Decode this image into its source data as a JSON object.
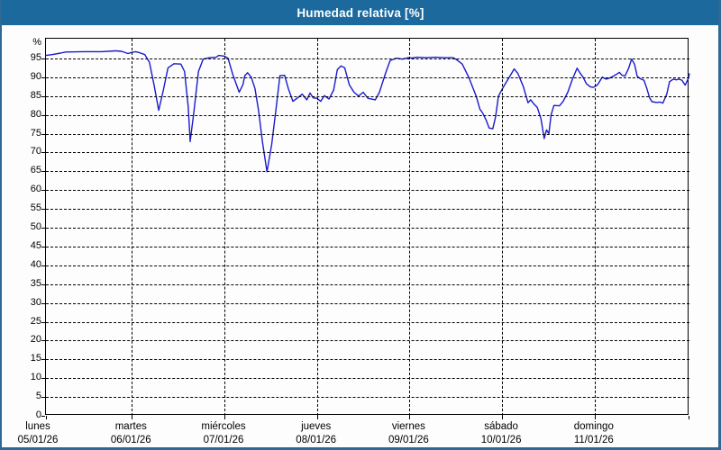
{
  "window": {
    "title": "Humedad relativa [%]",
    "title_bar_color": "#1b699d",
    "frame_color": "#2f6795",
    "background_color": "#fdfdfd"
  },
  "chart_data": {
    "type": "line",
    "title": "Humedad relativa [%]",
    "y_unit_label": "%",
    "ylim": [
      0,
      100.3
    ],
    "ytick_values": [
      0,
      5,
      10,
      15,
      20,
      25,
      30,
      35,
      40,
      45,
      50,
      55,
      60,
      65,
      70,
      75,
      80,
      85,
      90,
      95
    ],
    "grid": "dashed-black",
    "line_color": "#1a1acd",
    "x_days": [
      {
        "name": "lunes",
        "date": "05/01/26"
      },
      {
        "name": "martes",
        "date": "06/01/26"
      },
      {
        "name": "miércoles",
        "date": "07/01/26"
      },
      {
        "name": "jueves",
        "date": "08/01/26"
      },
      {
        "name": "viernes",
        "date": "09/01/26"
      },
      {
        "name": "sábado",
        "date": "10/01/26"
      },
      {
        "name": "domingo",
        "date": "11/01/26"
      }
    ],
    "series": [
      {
        "name": "Humedad relativa",
        "unit": "%",
        "points": [
          [
            0.0,
            95.8
          ],
          [
            0.07,
            96.0
          ],
          [
            0.17,
            96.4
          ],
          [
            0.23,
            96.7
          ],
          [
            0.44,
            96.8
          ],
          [
            0.65,
            96.8
          ],
          [
            0.81,
            97.0
          ],
          [
            0.88,
            96.9
          ],
          [
            0.955,
            96.3
          ],
          [
            1.0,
            96.6
          ],
          [
            1.04,
            96.8
          ],
          [
            1.085,
            96.5
          ],
          [
            1.14,
            96.0
          ],
          [
            1.19,
            94.0
          ],
          [
            1.24,
            88.0
          ],
          [
            1.29,
            81.2
          ],
          [
            1.34,
            86.5
          ],
          [
            1.39,
            92.5
          ],
          [
            1.455,
            93.6
          ],
          [
            1.53,
            93.5
          ],
          [
            1.57,
            91.5
          ],
          [
            1.61,
            82.0
          ],
          [
            1.63,
            72.9
          ],
          [
            1.67,
            80.7
          ],
          [
            1.72,
            91.5
          ],
          [
            1.77,
            94.8
          ],
          [
            1.84,
            95.2
          ],
          [
            1.91,
            95.3
          ],
          [
            1.94,
            95.8
          ],
          [
            2.0,
            95.6
          ],
          [
            2.04,
            95.0
          ],
          [
            2.09,
            90.8
          ],
          [
            2.16,
            86.0
          ],
          [
            2.2,
            88.0
          ],
          [
            2.22,
            90.4
          ],
          [
            2.25,
            91.2
          ],
          [
            2.29,
            90.0
          ],
          [
            2.33,
            87.0
          ],
          [
            2.37,
            81.0
          ],
          [
            2.41,
            73.0
          ],
          [
            2.46,
            64.9
          ],
          [
            2.51,
            72.0
          ],
          [
            2.555,
            81.0
          ],
          [
            2.6,
            90.4
          ],
          [
            2.65,
            90.5
          ],
          [
            2.69,
            87.0
          ],
          [
            2.74,
            83.6
          ],
          [
            2.79,
            84.5
          ],
          [
            2.84,
            85.5
          ],
          [
            2.89,
            84.0
          ],
          [
            2.925,
            85.8
          ],
          [
            2.96,
            84.5
          ],
          [
            3.0,
            84.4
          ],
          [
            3.04,
            83.6
          ],
          [
            3.08,
            85.1
          ],
          [
            3.13,
            84.2
          ],
          [
            3.18,
            86.6
          ],
          [
            3.22,
            92.0
          ],
          [
            3.26,
            93.0
          ],
          [
            3.3,
            92.5
          ],
          [
            3.35,
            88.0
          ],
          [
            3.4,
            86.0
          ],
          [
            3.45,
            85.0
          ],
          [
            3.5,
            86.0
          ],
          [
            3.55,
            84.4
          ],
          [
            3.63,
            84.0
          ],
          [
            3.675,
            86.0
          ],
          [
            3.74,
            91.0
          ],
          [
            3.79,
            94.4
          ],
          [
            3.86,
            95.1
          ],
          [
            3.92,
            94.8
          ],
          [
            3.99,
            95.2
          ],
          [
            4.03,
            95.1
          ],
          [
            4.08,
            95.3
          ],
          [
            4.18,
            95.2
          ],
          [
            4.28,
            95.3
          ],
          [
            4.37,
            95.2
          ],
          [
            4.47,
            95.2
          ],
          [
            4.5,
            94.8
          ],
          [
            4.57,
            93.5
          ],
          [
            4.64,
            90.0
          ],
          [
            4.72,
            85.0
          ],
          [
            4.76,
            81.5
          ],
          [
            4.79,
            80.5
          ],
          [
            4.83,
            78.5
          ],
          [
            4.86,
            76.5
          ],
          [
            4.9,
            76.3
          ],
          [
            4.93,
            79.5
          ],
          [
            4.96,
            84.9
          ],
          [
            5.0,
            86.8
          ],
          [
            5.04,
            88.5
          ],
          [
            5.09,
            90.5
          ],
          [
            5.13,
            92.2
          ],
          [
            5.17,
            91.0
          ],
          [
            5.23,
            87.5
          ],
          [
            5.28,
            83.2
          ],
          [
            5.31,
            84.0
          ],
          [
            5.34,
            83.0
          ],
          [
            5.38,
            82.0
          ],
          [
            5.42,
            79.0
          ],
          [
            5.455,
            73.7
          ],
          [
            5.48,
            76.0
          ],
          [
            5.505,
            75.0
          ],
          [
            5.53,
            80.0
          ],
          [
            5.56,
            82.5
          ],
          [
            5.62,
            82.4
          ],
          [
            5.66,
            83.6
          ],
          [
            5.71,
            86.0
          ],
          [
            5.76,
            89.5
          ],
          [
            5.81,
            92.4
          ],
          [
            5.845,
            91.0
          ],
          [
            5.875,
            90.0
          ],
          [
            5.91,
            88.3
          ],
          [
            5.95,
            87.5
          ],
          [
            5.98,
            87.3
          ],
          [
            6.0,
            87.5
          ],
          [
            6.03,
            88.0
          ],
          [
            6.08,
            90.0
          ],
          [
            6.12,
            89.5
          ],
          [
            6.16,
            89.8
          ],
          [
            6.2,
            90.3
          ],
          [
            6.225,
            90.7
          ],
          [
            6.26,
            91.3
          ],
          [
            6.29,
            90.5
          ],
          [
            6.32,
            90.3
          ],
          [
            6.36,
            92.5
          ],
          [
            6.39,
            94.8
          ],
          [
            6.42,
            93.5
          ],
          [
            6.45,
            90.2
          ],
          [
            6.49,
            89.5
          ],
          [
            6.52,
            89.2
          ],
          [
            6.55,
            87.0
          ],
          [
            6.58,
            84.5
          ],
          [
            6.605,
            83.5
          ],
          [
            6.65,
            83.3
          ],
          [
            6.69,
            83.4
          ],
          [
            6.72,
            83.1
          ],
          [
            6.76,
            85.5
          ],
          [
            6.79,
            88.8
          ],
          [
            6.83,
            89.5
          ],
          [
            6.86,
            89.3
          ],
          [
            6.89,
            89.5
          ],
          [
            6.92,
            89.2
          ],
          [
            6.955,
            87.9
          ],
          [
            6.985,
            89.5
          ],
          [
            7.0,
            90.9
          ]
        ]
      }
    ]
  }
}
